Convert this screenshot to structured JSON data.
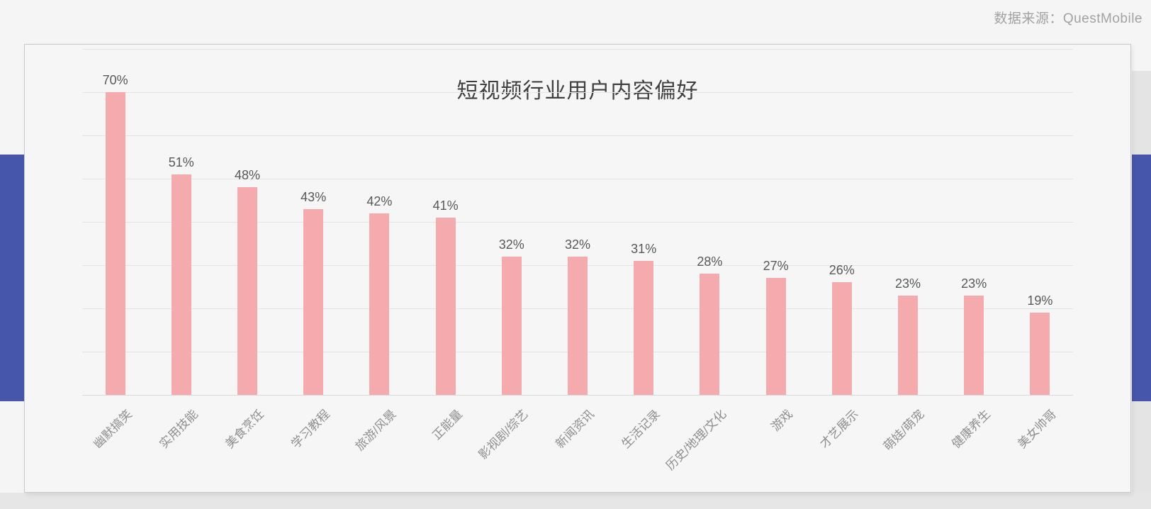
{
  "source_label": "数据来源：QuestMobile",
  "chart_data": {
    "type": "bar",
    "title": "短视频行业用户内容偏好",
    "categories": [
      "幽默搞笑",
      "实用技能",
      "美食烹饪",
      "学习教程",
      "旅游/风景",
      "正能量",
      "影视剧/综艺",
      "新闻资讯",
      "生活记录",
      "历史/地理/文化",
      "游戏",
      "才艺展示",
      "萌娃/萌宠",
      "健康养生",
      "美女帅哥"
    ],
    "values": [
      70,
      51,
      48,
      43,
      42,
      41,
      32,
      32,
      31,
      28,
      27,
      26,
      23,
      23,
      19
    ],
    "value_suffix": "%",
    "xlabel": "",
    "ylabel": "",
    "ylim": [
      0,
      80
    ],
    "grid_interval": 10,
    "grid": true,
    "legend": false
  },
  "colors": {
    "bar": "#f5aaae",
    "accent_band": "#4656ab",
    "grid_line": "#e4e4e5",
    "axis_line": "#d8d8d9",
    "title_text": "#3f3f3f",
    "value_text": "#585858",
    "category_text": "#8f8f8f",
    "source_text": "#a2a2a2"
  }
}
